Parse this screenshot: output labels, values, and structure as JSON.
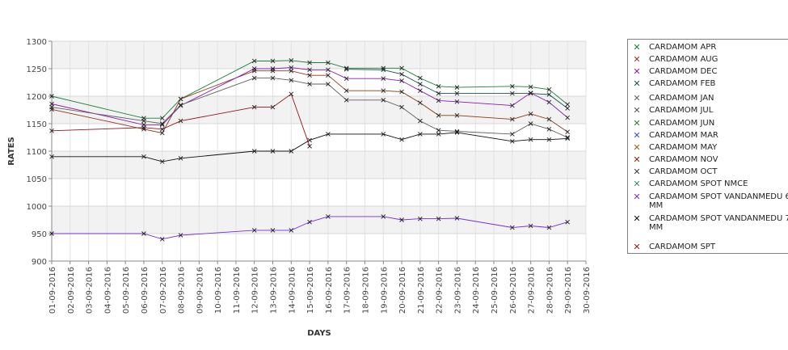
{
  "chart_data": {
    "type": "line",
    "title": "",
    "xlabel": "DAYS",
    "ylabel": "RATES",
    "ylim": [
      900,
      1300
    ],
    "yticks": [
      900,
      950,
      1000,
      1050,
      1100,
      1150,
      1200,
      1250,
      1300
    ],
    "categories": [
      "01-09-2016",
      "02-09-2016",
      "03-09-2016",
      "04-09-2016",
      "05-09-2016",
      "06-09-2016",
      "07-09-2016",
      "08-09-2016",
      "09-09-2016",
      "10-09-2016",
      "11-09-2016",
      "12-09-2016",
      "13-09-2016",
      "14-09-2016",
      "15-09-2016",
      "16-09-2016",
      "17-09-2016",
      "18-09-2016",
      "19-09-2016",
      "20-09-2016",
      "21-09-2016",
      "22-09-2016",
      "23-09-2016",
      "24-09-2016",
      "25-09-2016",
      "26-09-2016",
      "27-09-2016",
      "28-09-2016",
      "29-09-2016",
      "30-09-2016"
    ],
    "grid": true,
    "legend_position": "right",
    "series": [
      {
        "name": "CARDAMOM APR",
        "color": "#1a7f3a",
        "points": [
          [
            "01-09-2016",
            1200
          ],
          [
            "06-09-2016",
            1160
          ],
          [
            "07-09-2016",
            1160
          ],
          [
            "08-09-2016",
            1195
          ],
          [
            "12-09-2016",
            1264
          ],
          [
            "13-09-2016",
            1264
          ],
          [
            "14-09-2016",
            1265
          ],
          [
            "15-09-2016",
            1261
          ],
          [
            "16-09-2016",
            1261
          ],
          [
            "17-09-2016",
            1251
          ],
          [
            "19-09-2016",
            1251
          ],
          [
            "20-09-2016",
            1251
          ],
          [
            "21-09-2016",
            1233
          ],
          [
            "22-09-2016",
            1218
          ],
          [
            "23-09-2016",
            1216
          ],
          [
            "26-09-2016",
            1218
          ],
          [
            "27-09-2016",
            1217
          ],
          [
            "28-09-2016",
            1212
          ],
          [
            "29-09-2016",
            1185
          ]
        ]
      },
      {
        "name": "CARDAMOM AUG",
        "color": "#8b3a1a",
        "points": [
          [
            "01-09-2016",
            1176
          ],
          [
            "06-09-2016",
            1140
          ],
          [
            "07-09-2016",
            1133
          ],
          [
            "08-09-2016",
            1195
          ],
          [
            "12-09-2016",
            1246
          ],
          [
            "13-09-2016",
            1246
          ],
          [
            "14-09-2016",
            1246
          ],
          [
            "15-09-2016",
            1238
          ],
          [
            "16-09-2016",
            1238
          ],
          [
            "17-09-2016",
            1210
          ],
          [
            "19-09-2016",
            1210
          ],
          [
            "20-09-2016",
            1208
          ],
          [
            "21-09-2016",
            1188
          ],
          [
            "22-09-2016",
            1165
          ],
          [
            "23-09-2016",
            1165
          ],
          [
            "26-09-2016",
            1158
          ],
          [
            "27-09-2016",
            1168
          ],
          [
            "28-09-2016",
            1158
          ],
          [
            "29-09-2016",
            1135
          ]
        ]
      },
      {
        "name": "CARDAMOM DEC",
        "color": "#8a1ab0",
        "points": [
          [
            "01-09-2016",
            1186
          ],
          [
            "06-09-2016",
            1148
          ],
          [
            "07-09-2016",
            1148
          ],
          [
            "08-09-2016",
            1183
          ],
          [
            "12-09-2016",
            1250
          ],
          [
            "13-09-2016",
            1250
          ],
          [
            "14-09-2016",
            1252
          ],
          [
            "15-09-2016",
            1248
          ],
          [
            "16-09-2016",
            1248
          ],
          [
            "17-09-2016",
            1232
          ],
          [
            "19-09-2016",
            1232
          ],
          [
            "20-09-2016",
            1228
          ],
          [
            "21-09-2016",
            1210
          ],
          [
            "22-09-2016",
            1192
          ],
          [
            "23-09-2016",
            1190
          ],
          [
            "26-09-2016",
            1183
          ],
          [
            "27-09-2016",
            1206
          ],
          [
            "28-09-2016",
            1189
          ],
          [
            "29-09-2016",
            1161
          ]
        ]
      },
      {
        "name": "CARDAMOM FEB",
        "color": "#1f5050",
        "points": [
          [
            "17-09-2016",
            1249
          ],
          [
            "19-09-2016",
            1248
          ],
          [
            "20-09-2016",
            1240
          ],
          [
            "21-09-2016",
            1222
          ],
          [
            "22-09-2016",
            1205
          ],
          [
            "23-09-2016",
            1205
          ],
          [
            "26-09-2016",
            1205
          ],
          [
            "27-09-2016",
            1205
          ],
          [
            "28-09-2016",
            1203
          ],
          [
            "29-09-2016",
            1178
          ]
        ]
      },
      {
        "name": "CARDAMOM JAN",
        "color": "#606060",
        "points": [
          [
            "01-09-2016",
            1180
          ],
          [
            "06-09-2016",
            1155
          ],
          [
            "07-09-2016",
            1150
          ],
          [
            "08-09-2016",
            1184
          ],
          [
            "12-09-2016",
            1233
          ],
          [
            "13-09-2016",
            1233
          ],
          [
            "14-09-2016",
            1229
          ],
          [
            "15-09-2016",
            1222
          ],
          [
            "16-09-2016",
            1222
          ],
          [
            "17-09-2016",
            1193
          ],
          [
            "19-09-2016",
            1193
          ],
          [
            "20-09-2016",
            1180
          ],
          [
            "21-09-2016",
            1155
          ],
          [
            "22-09-2016",
            1138
          ],
          [
            "23-09-2016",
            1136
          ],
          [
            "26-09-2016",
            1131
          ],
          [
            "27-09-2016",
            1150
          ],
          [
            "28-09-2016",
            1140
          ],
          [
            "29-09-2016",
            1125
          ]
        ]
      },
      {
        "name": "CARDAMOM JUL",
        "color": "#555555",
        "points": []
      },
      {
        "name": "CARDAMOM JUN",
        "color": "#2e7d32",
        "points": []
      },
      {
        "name": "CARDAMOM MAR",
        "color": "#3a4fc8",
        "points": []
      },
      {
        "name": "CARDAMOM MAY",
        "color": "#9a5a1a",
        "points": []
      },
      {
        "name": "CARDAMOM NOV",
        "color": "#7a2a10",
        "points": []
      },
      {
        "name": "CARDAMOM OCT",
        "color": "#404040",
        "points": []
      },
      {
        "name": "CARDAMOM SPOT NMCE",
        "color": "#3a8a6a",
        "points": []
      },
      {
        "name": "CARDAMOM SPOT VANDANMEDU 6.MM",
        "color": "#7a2ad8",
        "points": [
          [
            "01-09-2016",
            950
          ],
          [
            "06-09-2016",
            950
          ],
          [
            "07-09-2016",
            940
          ],
          [
            "08-09-2016",
            947
          ],
          [
            "12-09-2016",
            956
          ],
          [
            "13-09-2016",
            956
          ],
          [
            "14-09-2016",
            956
          ],
          [
            "15-09-2016",
            971
          ],
          [
            "16-09-2016",
            981
          ],
          [
            "19-09-2016",
            981
          ],
          [
            "20-09-2016",
            975
          ],
          [
            "21-09-2016",
            977
          ],
          [
            "22-09-2016",
            977
          ],
          [
            "23-09-2016",
            978
          ],
          [
            "26-09-2016",
            961
          ],
          [
            "27-09-2016",
            964
          ],
          [
            "28-09-2016",
            961
          ],
          [
            "29-09-2016",
            971
          ]
        ]
      },
      {
        "name": "CARDAMOM SPOT VANDANMEDU 7.MM",
        "color": "#111111",
        "points": [
          [
            "01-09-2016",
            1090
          ],
          [
            "06-09-2016",
            1090
          ],
          [
            "07-09-2016",
            1081
          ],
          [
            "08-09-2016",
            1087
          ],
          [
            "12-09-2016",
            1100
          ],
          [
            "13-09-2016",
            1100
          ],
          [
            "14-09-2016",
            1100
          ],
          [
            "15-09-2016",
            1120
          ],
          [
            "16-09-2016",
            1131
          ],
          [
            "19-09-2016",
            1131
          ],
          [
            "20-09-2016",
            1121
          ],
          [
            "21-09-2016",
            1131
          ],
          [
            "22-09-2016",
            1131
          ],
          [
            "23-09-2016",
            1134
          ],
          [
            "26-09-2016",
            1118
          ],
          [
            "27-09-2016",
            1121
          ],
          [
            "28-09-2016",
            1121
          ],
          [
            "29-09-2016",
            1123
          ]
        ]
      },
      {
        "name": "CARDAMOM SPT",
        "color": "#8b1a1a",
        "points": [
          [
            "01-09-2016",
            1137
          ],
          [
            "06-09-2016",
            1143
          ],
          [
            "07-09-2016",
            1140
          ],
          [
            "08-09-2016",
            1155
          ],
          [
            "12-09-2016",
            1180
          ],
          [
            "13-09-2016",
            1180
          ],
          [
            "14-09-2016",
            1204
          ],
          [
            "15-09-2016",
            1109
          ]
        ]
      }
    ]
  }
}
